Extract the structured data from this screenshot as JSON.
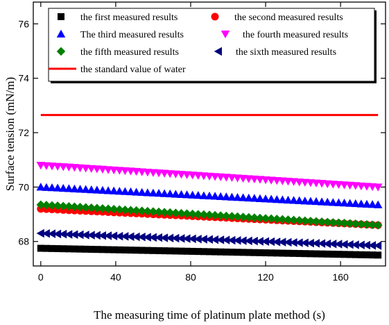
{
  "chart_data": {
    "type": "scatter",
    "title": "",
    "xlabel": "The measuring time of platinum plate method (s)",
    "ylabel": "Surface tension (mN/m)",
    "xlim": [
      -4,
      184
    ],
    "ylim": [
      67.1,
      76.8
    ],
    "xticks": [
      0,
      40,
      80,
      120,
      160
    ],
    "yticks": [
      68,
      70,
      72,
      74,
      76
    ],
    "legend_position": "top-inside",
    "x": [
      0,
      180
    ],
    "series": [
      {
        "name": "the first measured results",
        "marker": "square",
        "color": "#000000",
        "start": 67.75,
        "end": 67.5
      },
      {
        "name": "the second measured results",
        "marker": "circle",
        "color": "#ff0000",
        "start": 69.2,
        "end": 68.6
      },
      {
        "name": "The third measured results",
        "marker": "triangle-up",
        "color": "#0000ff",
        "start": 70.0,
        "end": 69.35
      },
      {
        "name": "the fourth measured results",
        "marker": "triangle-down",
        "color": "#ff00ff",
        "start": 70.8,
        "end": 70.0
      },
      {
        "name": "the fifth measured results",
        "marker": "diamond",
        "color": "#008000",
        "start": 69.35,
        "end": 68.6
      },
      {
        "name": "the sixth measured results",
        "marker": "triangle-left",
        "color": "#000080",
        "start": 68.3,
        "end": 67.85
      },
      {
        "name": "the standard value of water",
        "marker": "line",
        "color": "#ff0000",
        "start": 72.65,
        "end": 72.65
      }
    ]
  }
}
